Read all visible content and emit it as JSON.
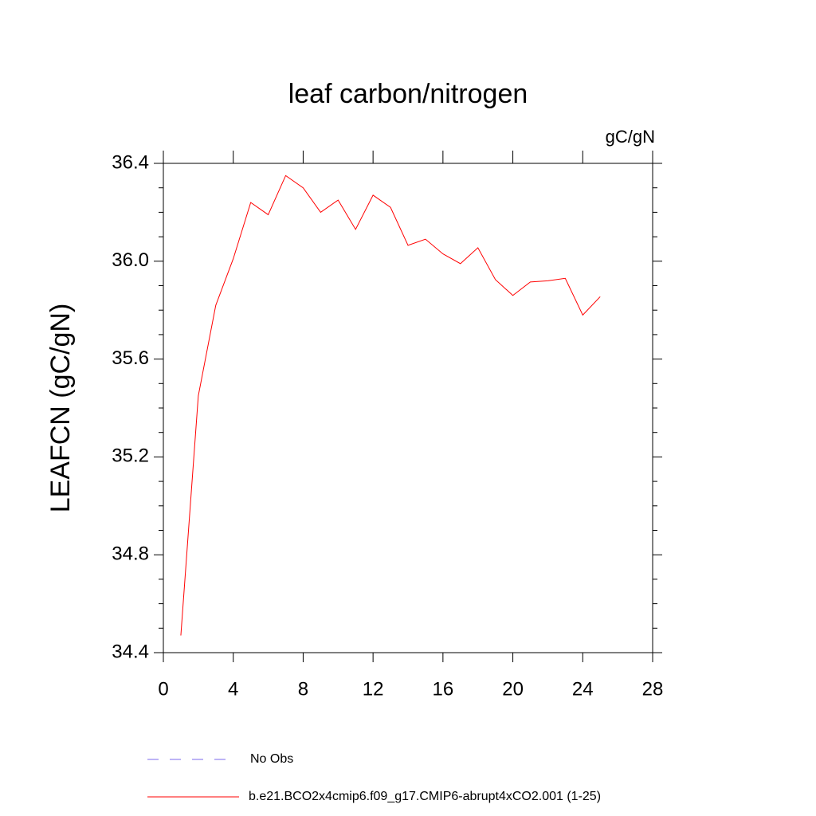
{
  "chart_data": {
    "type": "line",
    "title": "leaf carbon/nitrogen",
    "units": "gC/gN",
    "ylabel": "LEAFCN  (gC/gN)",
    "x": [
      1,
      2,
      3,
      4,
      5,
      6,
      7,
      8,
      9,
      10,
      11,
      12,
      13,
      14,
      15,
      16,
      17,
      18,
      19,
      20,
      21,
      22,
      23,
      24,
      25
    ],
    "series": [
      {
        "name": "b.e21.BCO2x4cmip6.f09_g17.CMIP6-abrupt4xCO2.001 (1-25)",
        "color": "#ff0000",
        "values": [
          34.47,
          35.45,
          35.82,
          36.01,
          36.24,
          36.19,
          36.35,
          36.3,
          36.2,
          36.25,
          36.13,
          36.27,
          36.22,
          36.065,
          36.09,
          36.03,
          35.99,
          36.055,
          35.925,
          35.86,
          35.915,
          35.92,
          35.93,
          35.78,
          35.855
        ]
      }
    ],
    "obs_legend": {
      "name": "No Obs",
      "color": "#7b68ee",
      "dashed": true
    },
    "xlim": [
      0,
      28
    ],
    "xticks": [
      0,
      4,
      8,
      12,
      16,
      20,
      24,
      28
    ],
    "ylim": [
      34.4,
      36.4
    ],
    "yticks": [
      34.4,
      34.8,
      35.2,
      35.6,
      {
        "value": 36,
        "label": "36.0"
      },
      36.4
    ],
    "yminor": [
      34.5,
      34.6,
      34.7,
      34.9,
      35.0,
      35.1,
      35.3,
      35.4,
      35.5,
      35.7,
      35.8,
      35.9,
      36.1,
      36.2,
      36.3
    ]
  }
}
